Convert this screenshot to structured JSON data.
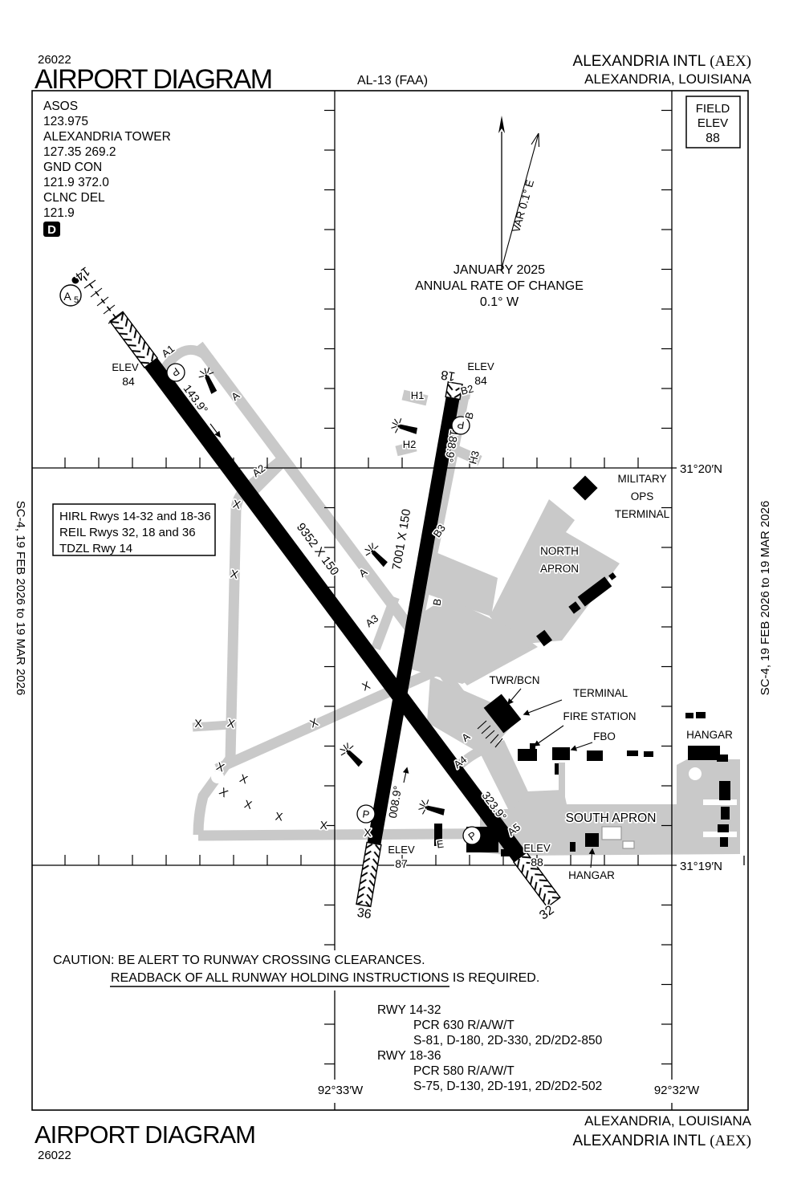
{
  "header": {
    "chart_number": "26022",
    "title": "AIRPORT DIAGRAM",
    "procedure_code": "AL-13 (FAA)",
    "airport_name": "ALEXANDRIA INTL",
    "airport_code": "(AEX)",
    "city_state": "ALEXANDRIA, LOUISIANA"
  },
  "footer": {
    "chart_number": "26022",
    "title": "AIRPORT DIAGRAM",
    "airport_name": "ALEXANDRIA INTL",
    "airport_code": "(AEX)",
    "city_state": "ALEXANDRIA, LOUISIANA"
  },
  "margin_note": "SC-4,  19 FEB 2026  to  19 MAR 2026",
  "comm_box": {
    "asos_label": "ASOS",
    "asos_freq": "123.975",
    "tower_label": "ALEXANDRIA TOWER",
    "tower_freq": "127.35  269.2",
    "ground_label": "GND CON",
    "ground_freq": "121.9  372.0",
    "clearance_label": "CLNC DEL",
    "clearance_freq": "121.9",
    "atis_letter": "D"
  },
  "field_elevation_box": {
    "line1": "FIELD",
    "line2": "ELEV",
    "value": "88"
  },
  "magnetic_variation": {
    "var_label": "VAR 0.1° E",
    "date": "JANUARY 2025",
    "rate_label": "ANNUAL RATE OF CHANGE",
    "rate_value": "0.1° W"
  },
  "lighting_box": {
    "hirl": "HIRL Rwys 14-32 and 18-36",
    "reil": "REIL Rwys 32, 18 and 36",
    "tdzl": "TDZL Rwy 14"
  },
  "caution": {
    "line1": "CAUTION: BE ALERT TO RUNWAY CROSSING CLEARANCES.",
    "line2": "READBACK OF ALL RUNWAY HOLDING INSTRUCTIONS IS REQUIRED."
  },
  "runway_data_block": {
    "rwy_14_32_label": "RWY 14-32",
    "rwy_14_32_pcr": "PCR 630 R/A/W/T",
    "rwy_14_32_codes": "S-81, D-180, 2D-330, 2D/2D2-850",
    "rwy_18_36_label": "RWY 18-36",
    "rwy_18_36_pcr": "PCR 580 R/A/W/T",
    "rwy_18_36_codes": "S-75, D-130, 2D-191, 2D/2D2-502"
  },
  "graticule": {
    "lat_north": "31°20′N",
    "lat_south": "31°19′N",
    "lon_west": "92°33′W",
    "lon_east": "92°32′W"
  },
  "runways": {
    "rwy14": "14",
    "rwy18": "18",
    "rwy32": "32",
    "rwy36": "36",
    "dim_14_32": "9352 X 150",
    "dim_18_36": "7001 X 150",
    "hdg_14": "143.9°",
    "hdg_18": "188.9°",
    "hdg_32": "323.9°",
    "hdg_36": "008.9°",
    "elev_label": "ELEV",
    "elev_rwy14": "84",
    "elev_rwy18": "84",
    "elev_rwy36": "87",
    "elev_rwy32": "88"
  },
  "taxiways": {
    "a1": "A1",
    "a2": "A2",
    "a3": "A3",
    "a4": "A4",
    "a5": "A5",
    "a": "A",
    "b": "B",
    "b2": "B2",
    "b3": "B3",
    "e": "E",
    "h1": "H1",
    "h2": "H2",
    "h3": "H3",
    "closed_mark": "X",
    "parking": "P",
    "approach_light_letter": "A",
    "approach_light_number": "5"
  },
  "facilities": {
    "military_ops_1": "MILITARY",
    "military_ops_2": "OPS",
    "military_ops_3": "TERMINAL",
    "north_apron_1": "NORTH",
    "north_apron_2": "APRON",
    "south_apron": "SOUTH APRON",
    "twr_bcn": "TWR/BCN",
    "terminal": "TERMINAL",
    "fire_station": "FIRE STATION",
    "fbo": "FBO",
    "hangar_east": "HANGAR",
    "hangar_south": "HANGAR"
  }
}
